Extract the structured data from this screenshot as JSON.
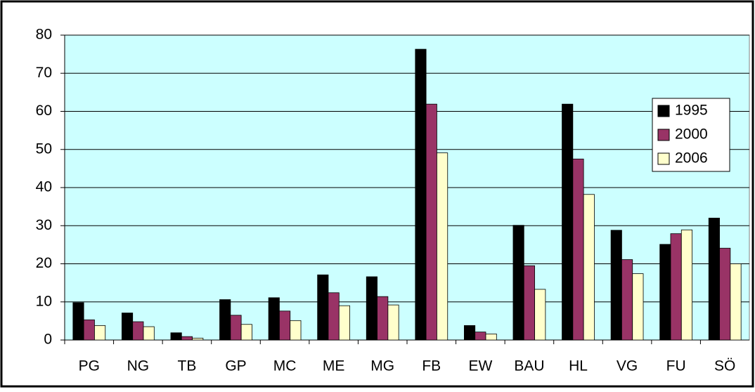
{
  "chart_data": {
    "type": "bar",
    "categories": [
      "PG",
      "NG",
      "TB",
      "GP",
      "MC",
      "ME",
      "MG",
      "FB",
      "EW",
      "BAU",
      "HL",
      "VG",
      "FU",
      "SÖ"
    ],
    "series": [
      {
        "name": "1995",
        "color": "#000000",
        "values": [
          9.8,
          7.1,
          1.9,
          10.6,
          11.1,
          17.1,
          16.6,
          76.3,
          3.8,
          30.1,
          61.9,
          28.8,
          25.1,
          32.0
        ]
      },
      {
        "name": "2000",
        "color": "#993366",
        "values": [
          5.3,
          4.8,
          0.9,
          6.5,
          7.6,
          12.4,
          11.4,
          61.9,
          2.1,
          19.5,
          47.5,
          21.1,
          27.9,
          24.1
        ]
      },
      {
        "name": "2006",
        "color": "#ffffcc",
        "values": [
          3.8,
          3.5,
          0.5,
          4.1,
          5.1,
          9.0,
          9.2,
          49.1,
          1.6,
          13.3,
          38.2,
          17.4,
          28.9,
          20.0
        ]
      }
    ],
    "ylim": [
      0,
      80
    ],
    "yticks": [
      0,
      10,
      20,
      30,
      40,
      50,
      60,
      70,
      80
    ],
    "grid": true,
    "legend": "right",
    "plot_background": "#ccffff"
  }
}
